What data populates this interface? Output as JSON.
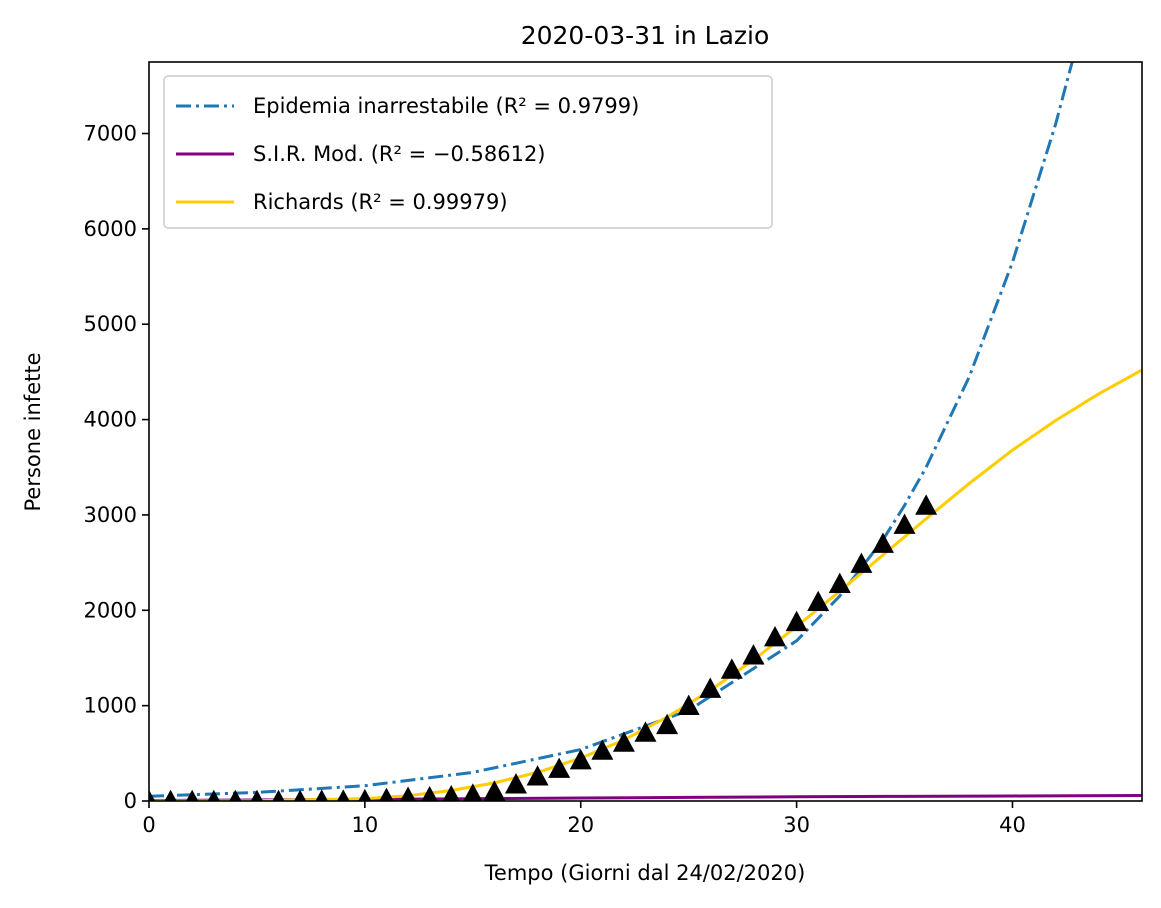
{
  "chart_data": {
    "type": "line",
    "title": "2020-03-31 in Lazio",
    "xlabel": "Tempo (Giorni dal 24/02/2020)",
    "ylabel": "Persone infette",
    "xlim": [
      0,
      46
    ],
    "ylim": [
      0,
      7750
    ],
    "xticks": [
      0,
      10,
      20,
      30,
      40
    ],
    "yticks": [
      0,
      1000,
      2000,
      3000,
      4000,
      5000,
      6000,
      7000
    ],
    "grid": false,
    "legend_position": "top-left",
    "series": [
      {
        "name": "Epidemia inarrestabile (R² = 0.9799)",
        "style": "dashdot",
        "color": "#1f77b4",
        "x": [
          0,
          5,
          10,
          15,
          20,
          25,
          30,
          32,
          34,
          35,
          36,
          38,
          40,
          42,
          43
        ],
        "y": [
          50,
          90,
          160,
          300,
          540,
          950,
          1680,
          2150,
          2740,
          3100,
          3500,
          4450,
          5650,
          7100,
          7950
        ]
      },
      {
        "name": "S.I.R. Mod. (R² = −0.58612)",
        "style": "solid",
        "color": "#800080",
        "x": [
          0,
          5,
          10,
          15,
          20,
          25,
          30,
          35,
          40,
          46
        ],
        "y": [
          5,
          10,
          17,
          24,
          31,
          38,
          44,
          49,
          53,
          57
        ]
      },
      {
        "name": "Richards (R² = 0.99979)",
        "style": "solid",
        "color": "#ffcc00",
        "x": [
          0,
          5,
          10,
          12,
          14,
          16,
          18,
          20,
          22,
          24,
          26,
          28,
          30,
          32,
          34,
          36,
          38,
          40,
          42,
          44,
          46
        ],
        "y": [
          0,
          2,
          25,
          55,
          110,
          190,
          300,
          450,
          640,
          880,
          1160,
          1480,
          1830,
          2200,
          2580,
          2960,
          3330,
          3680,
          3990,
          4270,
          4520
        ]
      },
      {
        "name": "",
        "style": "triangle-markers",
        "color": "#000000",
        "x": [
          0,
          1,
          2,
          3,
          4,
          5,
          6,
          7,
          8,
          9,
          10,
          11,
          12,
          13,
          14,
          15,
          16,
          17,
          18,
          19,
          20,
          21,
          22,
          23,
          24,
          25,
          26,
          27,
          28,
          29,
          30,
          31,
          32,
          33,
          34,
          35,
          36
        ],
        "y": [
          3,
          3,
          3,
          3,
          3,
          3,
          3,
          3,
          6,
          7,
          12,
          25,
          37,
          42,
          52,
          69,
          102,
          177,
          260,
          340,
          430,
          530,
          615,
          720,
          800,
          1000,
          1180,
          1380,
          1530,
          1720,
          1880,
          2090,
          2280,
          2490,
          2700,
          2900,
          3100
        ]
      }
    ]
  }
}
